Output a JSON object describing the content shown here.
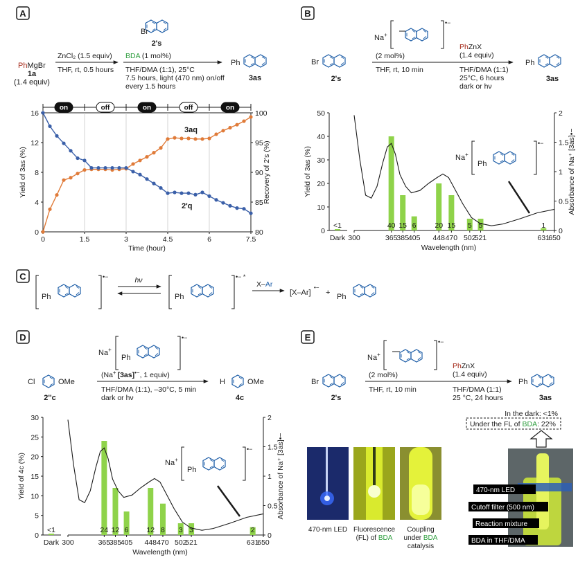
{
  "panels": {
    "A": {
      "label": "A",
      "aryl_bromide": "Br",
      "aryl_bromide_name": "2's",
      "grignard": "PhMgBr",
      "grignard_prefix": "Ph",
      "grignard_suffix": "MgBr",
      "grignard_name": "1a",
      "grignard_equiv": "(1.4 equiv)",
      "step1_top": "ZnCl₂ (1.5 equiv)",
      "step1_bottom": "THF, rt, 0.5 hours",
      "cat": "BDA",
      "cat_amount": " (1 mol%)",
      "step2_line1": "THF/DMA (1:1), 25°C",
      "step2_line2": "7.5 hours, light (470 nm) on/off",
      "step2_line3": "every 1.5 hours",
      "product_ph": "Ph",
      "product_name": "3as",
      "onoff": [
        "on",
        "off",
        "on",
        "off",
        "on"
      ]
    },
    "B": {
      "label": "B",
      "na": "Na",
      "na_sup": "+",
      "radical": "•−",
      "cat_amount": "(2 mol%)",
      "step1_bottom": "THF, rt, 10 min",
      "reagent_ph": "Ph",
      "reagent": "ZnX",
      "reagent_equiv": "(1.4 equiv)",
      "cond1": "THF/DMA (1:1)",
      "cond2": "25°C, 6 hours",
      "cond3": "dark or hν",
      "start_br": "Br",
      "start_name": "2's",
      "product_ph": "Ph",
      "product_name": "3as",
      "inset_ph": "Ph"
    },
    "C": {
      "label": "C",
      "ph1": "Ph",
      "ph2": "Ph",
      "ph3": "Ph",
      "rad1": "•−",
      "rad2": "•− *",
      "hv": "hν",
      "xar_x": "X–",
      "xar_ar": "Ar",
      "complex": "[X–Ar]",
      "complex_rad": "•−",
      "plus": "+"
    },
    "D": {
      "label": "D",
      "start_cl": "Cl",
      "start_ome": "OMe",
      "start_name": "2''c",
      "product_h": "H",
      "product_ome": "OMe",
      "product_name": "4c",
      "na": "Na",
      "na_sup": "+",
      "radical": "•−",
      "reagent_line_a": "(Na",
      "reagent_line_b": "[3as]",
      "reagent_line_c": ", 1 equiv)",
      "cond1": "THF/DMA (1:1), –30°C, 5 min",
      "cond2": "dark or hν",
      "ph_label": "Ph",
      "inset_ph": "Ph"
    },
    "E": {
      "label": "E",
      "start_br": "Br",
      "start_name": "2's",
      "na": "Na",
      "na_sup": "+",
      "radical": "•−",
      "cat_amount": "(2 mol%)",
      "step1_bottom": "THF, rt, 10 min",
      "reagent_ph": "Ph",
      "reagent": "ZnX",
      "reagent_equiv": "(1.4 equiv)",
      "cond1": "THF/DMA (1:1)",
      "cond2": "25 °C, 24 hours",
      "product_ph": "Ph",
      "product_name": "3as",
      "dark_result": "In the dark: <1%",
      "fl_result_a": "Under the FL of ",
      "fl_result_b": "BDA",
      "fl_result_c": ": 22%",
      "photo1_caption": "470-nm LED",
      "photo2_caption_a": "Fluorescence",
      "photo2_caption_b": "(FL) of ",
      "photo2_caption_c": "BDA",
      "photo3_caption_a": "Coupling",
      "photo3_caption_b": "under ",
      "photo3_caption_c": "BDA",
      "photo3_caption_d": "catalysis",
      "label_led": "470-nm LED",
      "label_filter": "Cutoff filter (500 nm)",
      "label_mixture": "Reaction mixture",
      "label_bda": "BDA in THF/DMA"
    }
  },
  "colors": {
    "ph_red": "#a52a1a",
    "bda_green": "#2e9e3e",
    "ring_blue": "#1f5fa8",
    "series_blue": "#3a5fa8",
    "series_orange": "#e07b39",
    "bar_green": "#8fd34a"
  },
  "chart_data": [
    {
      "id": "A",
      "type": "line",
      "xlabel": "Time (hour)",
      "ylabel_left": "Yield of 3as (%)",
      "ylabel_right": "Recovery of 2's (%)",
      "xlim": [
        0,
        7.5
      ],
      "ylim_left": [
        0,
        16
      ],
      "ylim_right": [
        80,
        100
      ],
      "xticks": [
        "0",
        "1.5",
        "3",
        "4.5",
        "6",
        "7.5"
      ],
      "yticks_left": [
        "0",
        "4",
        "8",
        "12",
        "16"
      ],
      "yticks_right": [
        "80",
        "85",
        "90",
        "95",
        "100"
      ],
      "series": [
        {
          "name": "3aq",
          "axis": "right",
          "color": "#e07b39",
          "x": [
            0,
            0.25,
            0.5,
            0.75,
            1.0,
            1.25,
            1.5,
            1.75,
            2.0,
            2.25,
            2.5,
            2.75,
            3.0,
            3.25,
            3.5,
            3.75,
            4.0,
            4.25,
            4.5,
            4.75,
            5.0,
            5.25,
            5.5,
            5.75,
            6.0,
            6.25,
            6.5,
            6.75,
            7.0,
            7.25,
            7.5
          ],
          "y": [
            80,
            83.8,
            86.2,
            88.7,
            89.1,
            89.8,
            90.4,
            90.5,
            90.5,
            90.5,
            90.4,
            90.5,
            90.6,
            91.4,
            92.0,
            92.6,
            93.3,
            94.1,
            95.6,
            95.8,
            95.7,
            95.7,
            95.6,
            95.6,
            95.7,
            96.4,
            97.0,
            97.5,
            98.0,
            98.6,
            99.3
          ]
        },
        {
          "name": "2'q",
          "axis": "left",
          "color": "#3a5fa8",
          "x": [
            0,
            0.25,
            0.5,
            0.75,
            1.0,
            1.25,
            1.5,
            1.75,
            2.0,
            2.25,
            2.5,
            2.75,
            3.0,
            3.25,
            3.5,
            3.75,
            4.0,
            4.25,
            4.5,
            4.75,
            5.0,
            5.25,
            5.5,
            5.75,
            6.0,
            6.25,
            6.5,
            6.75,
            7.0,
            7.25,
            7.5
          ],
          "y": [
            16,
            14.2,
            12.9,
            11.9,
            10.9,
            9.9,
            9.6,
            8.6,
            8.6,
            8.6,
            8.6,
            8.6,
            8.6,
            8.1,
            7.7,
            7.1,
            6.5,
            5.9,
            5.2,
            5.3,
            5.2,
            5.2,
            5.0,
            5.3,
            4.8,
            4.3,
            3.9,
            3.5,
            3.2,
            3.1,
            2.5
          ]
        }
      ]
    },
    {
      "id": "B",
      "type": "bar",
      "xlabel": "Wavelength (nm)",
      "ylabel_left": "Yield of 3as (%)",
      "ylabel_right": "Absorbance of Na⁺ [3as]•−",
      "ylim_left": [
        0,
        50
      ],
      "ylim_right": [
        0,
        2
      ],
      "yticks_left": [
        "0",
        "10",
        "20",
        "30",
        "40",
        "50"
      ],
      "yticks_right": [
        "0",
        "0.5",
        "1",
        "1.5",
        "2"
      ],
      "categories": [
        "Dark",
        "365",
        "385",
        "405",
        "448",
        "470",
        "502",
        "521",
        "631"
      ],
      "values": [
        0,
        40,
        15,
        6,
        20,
        15,
        5,
        5,
        1
      ],
      "value_labels": [
        "<1",
        "40",
        "15",
        "6",
        "20",
        "15",
        "5",
        "5",
        "1"
      ],
      "xticks": [
        "Dark",
        "300",
        "365",
        "385",
        "405",
        "448",
        "470",
        "502",
        "521",
        "631",
        "650"
      ]
    },
    {
      "id": "D",
      "type": "bar",
      "xlabel": "Wavelength (nm)",
      "ylabel_left": "Yield of 4c (%)",
      "ylabel_right": "Absorbance of Na⁺ [3as]•−",
      "ylim_left": [
        0,
        30
      ],
      "ylim_right": [
        0,
        2
      ],
      "yticks_left": [
        "0",
        "5",
        "10",
        "15",
        "20",
        "25",
        "30"
      ],
      "yticks_right": [
        "0",
        "0.5",
        "1",
        "1.5",
        "2"
      ],
      "categories": [
        "Dark",
        "365",
        "385",
        "405",
        "448",
        "470",
        "502",
        "521",
        "631"
      ],
      "values": [
        0,
        24,
        12,
        6,
        12,
        8,
        3,
        3,
        2
      ],
      "value_labels": [
        "<1",
        "24",
        "12",
        "6",
        "12",
        "8",
        "3",
        "3",
        "2"
      ],
      "xticks": [
        "Dark",
        "300",
        "365",
        "385",
        "405",
        "448",
        "470",
        "502",
        "521",
        "631",
        "650"
      ]
    }
  ]
}
